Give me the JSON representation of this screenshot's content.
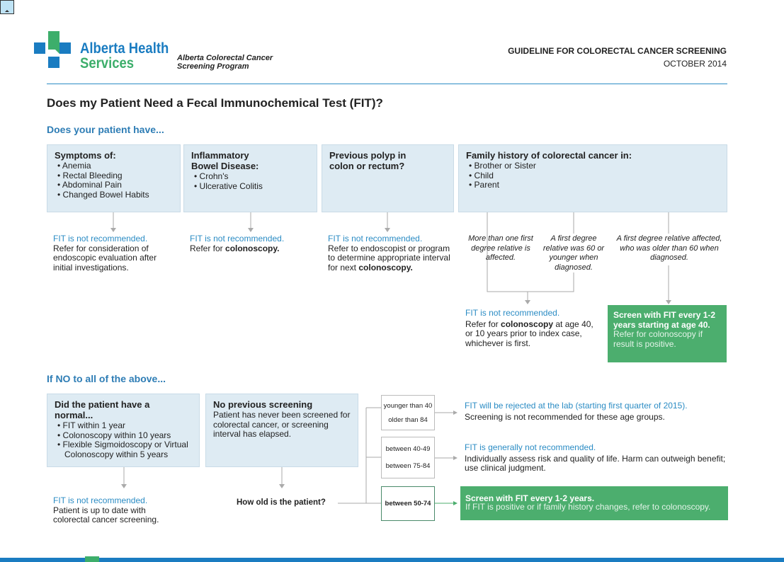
{
  "header": {
    "org_line1": "Alberta Health",
    "org_line2": "Services",
    "program": "Alberta Colorectal Cancer\nScreening Program",
    "doc_title": "GUIDELINE FOR COLORECTAL CANCER SCREENING",
    "date": "OCTOBER 2014"
  },
  "title": "Does my Patient Need a Fecal Immunochemical Test (FIT)?",
  "section1": "Does your patient have...",
  "top_boxes": [
    {
      "title": "Symptoms of:",
      "items": [
        "Anemia",
        "Rectal Bleeding",
        "Abdominal Pain",
        "Changed Bowel Habits"
      ]
    },
    {
      "title": "Inflammatory Bowel Disease:",
      "items": [
        "Crohn's",
        "Ulcerative Colitis"
      ]
    },
    {
      "title": "Previous polyp in colon or rectum?",
      "items": []
    },
    {
      "title": "Family history of colorectal cancer in:",
      "items": [
        "Brother or Sister",
        "Child",
        "Parent"
      ]
    }
  ],
  "top_results": [
    {
      "status": "FIT is not recommended.",
      "text": "Refer for consideration of endoscopic evaluation after initial investigations."
    },
    {
      "status": "FIT is not recommended.",
      "text_pre": "Refer for ",
      "text_bold": "colonoscopy."
    },
    {
      "status": "FIT is not recommended.",
      "text_pre": "Refer to endoscopist or program to determine appropriate interval for next ",
      "text_bold": "colonoscopy."
    }
  ],
  "family_branches": [
    "More than one first degree relative is affected.",
    "A first degree relative was 60 or younger when diagnosed.",
    "A first degree relative affected, who was older than 60 when diagnosed."
  ],
  "family_result": {
    "status": "FIT is not recommended.",
    "pre": "Refer for ",
    "bold": "colonoscopy",
    "post": " at age 40, or 10 years prior to index case, whichever is first."
  },
  "family_green": {
    "headline": "Screen with FIT every 1-2 years starting at age 40.",
    "text": "Refer for colonoscopy if result is positive."
  },
  "section2": "If NO to all of the above...",
  "normal_box": {
    "title": "Did the patient have a normal...",
    "items": [
      "FIT within 1 year",
      "Colonoscopy within 10 years",
      "Flexible Sigmoidoscopy or Virtual Colonoscopy within 5 years"
    ]
  },
  "normal_result": {
    "status": "FIT is not recommended.",
    "text": "Patient is up to date with colorectal cancer screening."
  },
  "no_screen_box": {
    "title": "No previous screening",
    "text": "Patient has never been screened for colorectal cancer, or screening interval has elapsed."
  },
  "question": "How old is the patient?",
  "ages": [
    {
      "a": "younger than 40",
      "b": "older than 84",
      "status": "FIT will be rejected at the lab (starting first quarter of 2015).",
      "text": "Screening is not recommended for these age groups."
    },
    {
      "a": "between 40-49",
      "b": "between 75-84",
      "status": "FIT is generally not recommended.",
      "text": "Individually assess risk and quality of life. Harm can outweigh benefit; use clinical judgment."
    },
    {
      "a": "between 50-74",
      "headline": "Screen with FIT every 1-2 years.",
      "text": "If FIT is positive or if family history changes, refer to colonoscopy."
    }
  ],
  "colors": {
    "blue": "#2b8cc4",
    "green": "#4cae6e",
    "box": "#deebf3",
    "brand_blue": "#1a7cc1",
    "brand_green": "#3dae6b"
  }
}
